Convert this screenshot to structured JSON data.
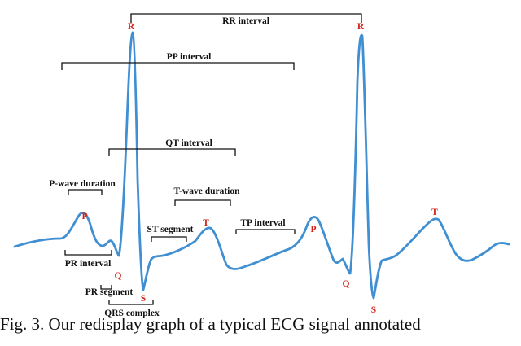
{
  "colors": {
    "trace": "#3f8fd2",
    "wave_label": "#d1231b",
    "bracket": "#111111"
  },
  "intervals": {
    "rr": "RR interval",
    "pp": "PP interval",
    "qt": "QT interval",
    "p_wave_duration": "P-wave duration",
    "t_wave_duration": "T-wave duration",
    "st_segment": "ST segment",
    "tp_interval": "TP interval",
    "pr_interval": "PR interval",
    "pr_segment": "PR segment",
    "qrs_complex": "QRS complex"
  },
  "waves": {
    "r1": "R",
    "r2": "R",
    "p1": "P",
    "p2": "P",
    "q1": "Q",
    "q2": "Q",
    "s1": "S",
    "s2": "S",
    "t1": "T",
    "t2": "T"
  },
  "caption": "Fig. 3. Our redisplay graph of a typical ECG signal annotated"
}
